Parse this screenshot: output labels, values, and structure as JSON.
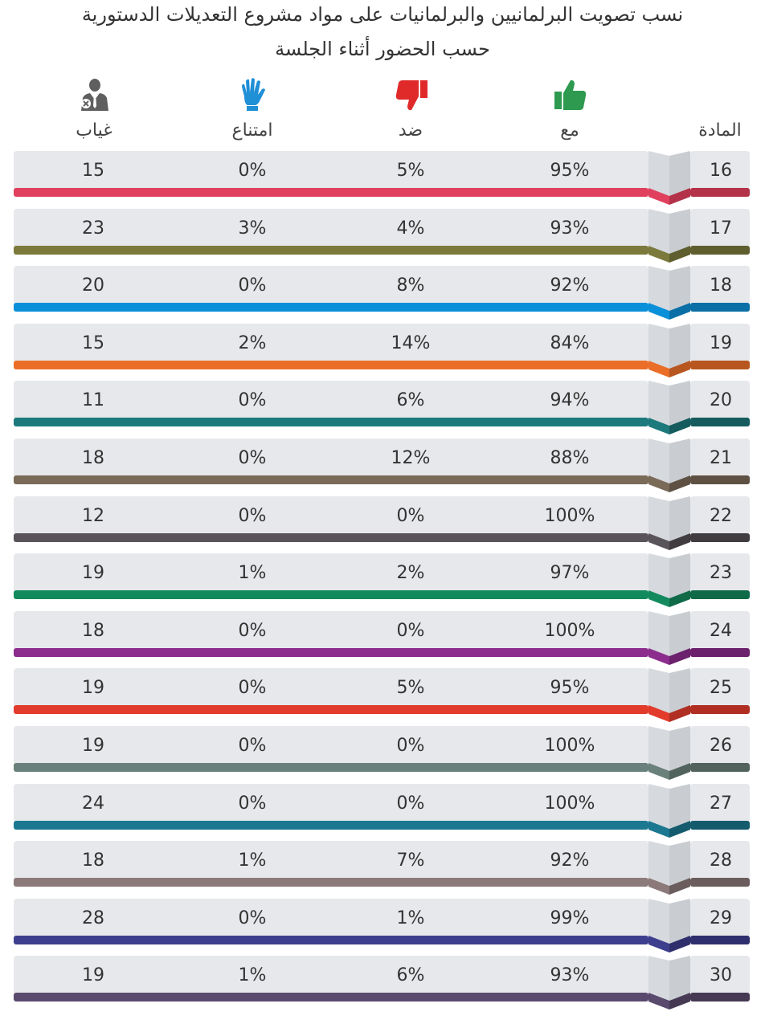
{
  "title_line1": "نسب تصويت البرلمانيين والبرلمانيات على مواد مشروع التعديلات الدستورية",
  "title_line2": "حسب الحضور أثناء الجلسة",
  "headers": {
    "article": "المادة",
    "for": "مع",
    "against": "ضد",
    "abstain": "امتناع",
    "absent": "غياب"
  },
  "icons": {
    "for": {
      "name": "thumbs-up-icon",
      "color": "#2e9a4f"
    },
    "against": {
      "name": "thumbs-down-icon",
      "color": "#e02a2a"
    },
    "abstain": {
      "name": "raised-hand-icon",
      "color": "#1f8fd6"
    },
    "absent": {
      "name": "absent-person-icon",
      "color": "#5f5f5f"
    }
  },
  "rows": [
    {
      "article": "16",
      "for": "95%",
      "against": "5%",
      "abstain": "0%",
      "absent": "15",
      "color": "#e0405e",
      "dark": "#b33249"
    },
    {
      "article": "17",
      "for": "93%",
      "against": "4%",
      "abstain": "3%",
      "absent": "23",
      "color": "#7b7a3c",
      "dark": "#5f5e2e"
    },
    {
      "article": "18",
      "for": "92%",
      "against": "8%",
      "abstain": "0%",
      "absent": "20",
      "color": "#0a90d9",
      "dark": "#0a6fa6"
    },
    {
      "article": "19",
      "for": "84%",
      "against": "14%",
      "abstain": "2%",
      "absent": "15",
      "color": "#ea6e28",
      "dark": "#b8561f"
    },
    {
      "article": "20",
      "for": "94%",
      "against": "6%",
      "abstain": "0%",
      "absent": "11",
      "color": "#1d7a7c",
      "dark": "#165c5e"
    },
    {
      "article": "21",
      "for": "88%",
      "against": "12%",
      "abstain": "0%",
      "absent": "18",
      "color": "#7a6a58",
      "dark": "#5e5143"
    },
    {
      "article": "22",
      "for": "100%",
      "against": "0%",
      "abstain": "0%",
      "absent": "12",
      "color": "#595459",
      "dark": "#403c40"
    },
    {
      "article": "23",
      "for": "97%",
      "against": "2%",
      "abstain": "1%",
      "absent": "19",
      "color": "#138a5e",
      "dark": "#0f6a48"
    },
    {
      "article": "24",
      "for": "100%",
      "against": "0%",
      "abstain": "0%",
      "absent": "18",
      "color": "#8c2c8c",
      "dark": "#6b216b"
    },
    {
      "article": "25",
      "for": "95%",
      "against": "5%",
      "abstain": "0%",
      "absent": "19",
      "color": "#e23b2c",
      "dark": "#b02e22"
    },
    {
      "article": "26",
      "for": "100%",
      "against": "0%",
      "abstain": "0%",
      "absent": "19",
      "color": "#6a807a",
      "dark": "#52635e"
    },
    {
      "article": "27",
      "for": "100%",
      "against": "0%",
      "abstain": "0%",
      "absent": "24",
      "color": "#1c7890",
      "dark": "#155b6e"
    },
    {
      "article": "28",
      "for": "92%",
      "against": "7%",
      "abstain": "1%",
      "absent": "18",
      "color": "#8c7a7a",
      "dark": "#6b5d5d"
    },
    {
      "article": "29",
      "for": "99%",
      "against": "1%",
      "abstain": "0%",
      "absent": "28",
      "color": "#3e3e8e",
      "dark": "#2f2f6d"
    },
    {
      "article": "30",
      "for": "93%",
      "against": "6%",
      "abstain": "1%",
      "absent": "19",
      "color": "#5a4a6e",
      "dark": "#453954"
    }
  ]
}
